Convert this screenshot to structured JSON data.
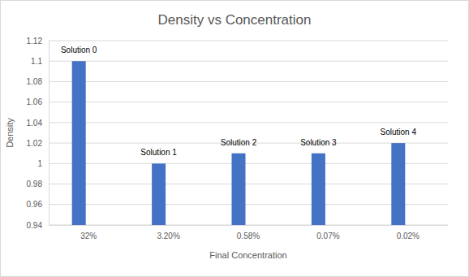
{
  "chart_data": {
    "type": "bar",
    "title": "Density vs Concentration",
    "x_label": "Final Concentration",
    "y_label": "Density",
    "categories": [
      "32%",
      "3.20%",
      "0.58%",
      "0.07%",
      "0.02%"
    ],
    "values": [
      1.1,
      1.0,
      1.01,
      1.01,
      1.02
    ],
    "annotations": [
      "Solution 0",
      "Solution 1",
      "Solution 2",
      "Solution 3",
      "Solution 4"
    ],
    "color": "#4472c4",
    "ylim": [
      0.94,
      1.12
    ],
    "yticks": [
      0.94,
      0.96,
      0.98,
      1,
      1.02,
      1.04,
      1.06,
      1.08,
      1.1,
      1.12
    ],
    "grid": true
  }
}
